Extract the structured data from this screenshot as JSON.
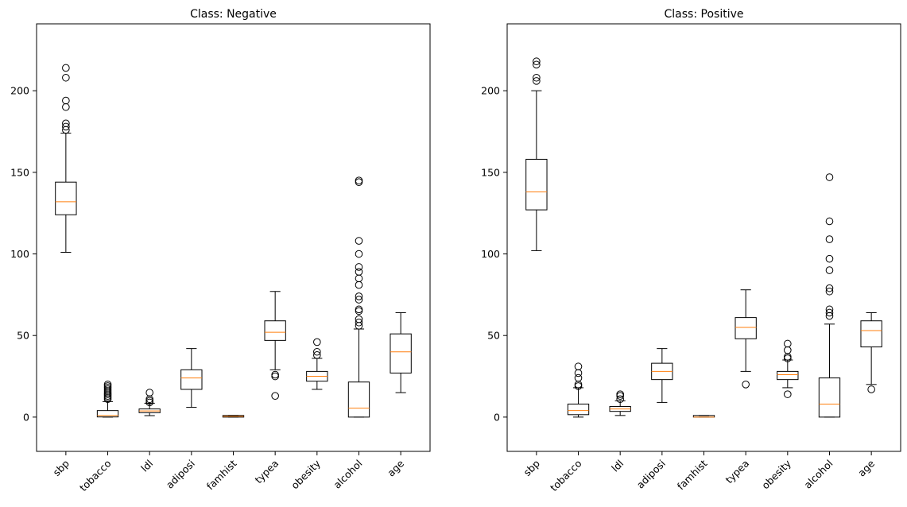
{
  "chart_data": [
    {
      "type": "boxplot",
      "title": "Class: Negative",
      "xlabel": "",
      "ylabel": "",
      "ylim": [
        -21,
        241
      ],
      "yticks": [
        0,
        50,
        100,
        150,
        200
      ],
      "grid": false,
      "categories": [
        "sbp",
        "tobacco",
        "ldl",
        "adiposi",
        "famhist",
        "typea",
        "obesity",
        "alcohol",
        "age"
      ],
      "boxes": [
        {
          "label": "sbp",
          "whislo": 101,
          "q1": 124,
          "med": 132,
          "q3": 144,
          "whishi": 174,
          "fliers": [
            176,
            178,
            180,
            190,
            194,
            208,
            214
          ]
        },
        {
          "label": "tobacco",
          "whislo": 0,
          "q1": 0.1,
          "med": 1,
          "q3": 4,
          "whishi": 9.5,
          "fliers": [
            11,
            12,
            13,
            14,
            15,
            16,
            17,
            18,
            19,
            20
          ]
        },
        {
          "label": "ldl",
          "whislo": 0.9,
          "q1": 2.7,
          "med": 3.8,
          "q3": 5,
          "whishi": 8.5,
          "fliers": [
            9,
            10,
            11,
            15
          ]
        },
        {
          "label": "adiposi",
          "whislo": 6,
          "q1": 17,
          "med": 24,
          "q3": 29,
          "whishi": 42,
          "fliers": []
        },
        {
          "label": "famhist",
          "whislo": 0,
          "q1": 0,
          "med": 0.5,
          "q3": 1,
          "whishi": 1,
          "fliers": []
        },
        {
          "label": "typea",
          "whislo": 29,
          "q1": 47,
          "med": 52,
          "q3": 59,
          "whishi": 77,
          "fliers": [
            13,
            25,
            26
          ]
        },
        {
          "label": "obesity",
          "whislo": 17,
          "q1": 22,
          "med": 25,
          "q3": 28,
          "whishi": 36,
          "fliers": [
            38,
            40,
            46
          ]
        },
        {
          "label": "alcohol",
          "whislo": 0,
          "q1": 0,
          "med": 5.5,
          "q3": 21.5,
          "whishi": 54,
          "fliers": [
            56,
            58,
            60,
            65,
            66,
            72,
            74,
            81,
            85,
            89,
            92,
            100,
            108,
            144,
            145
          ]
        },
        {
          "label": "age",
          "whislo": 15,
          "q1": 27,
          "med": 40,
          "q3": 51,
          "whishi": 64,
          "fliers": []
        }
      ]
    },
    {
      "type": "boxplot",
      "title": "Class: Positive",
      "xlabel": "",
      "ylabel": "",
      "ylim": [
        -21,
        241
      ],
      "yticks": [
        0,
        50,
        100,
        150,
        200
      ],
      "grid": false,
      "categories": [
        "sbp",
        "tobacco",
        "ldl",
        "adiposi",
        "famhist",
        "typea",
        "obesity",
        "alcohol",
        "age"
      ],
      "boxes": [
        {
          "label": "sbp",
          "whislo": 102,
          "q1": 127,
          "med": 138,
          "q3": 158,
          "whishi": 200,
          "fliers": [
            206,
            208,
            216,
            218
          ]
        },
        {
          "label": "tobacco",
          "whislo": 0,
          "q1": 1.5,
          "med": 4,
          "q3": 8,
          "whishi": 18,
          "fliers": [
            19,
            20,
            24,
            27,
            31
          ]
        },
        {
          "label": "ldl",
          "whislo": 1,
          "q1": 3.5,
          "med": 5,
          "q3": 6.5,
          "whishi": 10,
          "fliers": [
            11,
            13,
            14
          ]
        },
        {
          "label": "adiposi",
          "whislo": 9,
          "q1": 23,
          "med": 28,
          "q3": 33,
          "whishi": 42,
          "fliers": []
        },
        {
          "label": "famhist",
          "whislo": 0,
          "q1": 0,
          "med": 0,
          "q3": 1,
          "whishi": 1,
          "fliers": []
        },
        {
          "label": "typea",
          "whislo": 28,
          "q1": 48,
          "med": 55,
          "q3": 61,
          "whishi": 78,
          "fliers": [
            20
          ]
        },
        {
          "label": "obesity",
          "whislo": 18,
          "q1": 23,
          "med": 26,
          "q3": 28,
          "whishi": 35,
          "fliers": [
            14,
            36,
            37,
            41,
            45
          ]
        },
        {
          "label": "alcohol",
          "whislo": 0,
          "q1": 0,
          "med": 8,
          "q3": 24,
          "whishi": 57,
          "fliers": [
            62,
            64,
            66,
            77,
            79,
            90,
            97,
            109,
            120,
            147
          ]
        },
        {
          "label": "age",
          "whislo": 20,
          "q1": 43,
          "med": 53,
          "q3": 59,
          "whishi": 64,
          "fliers": [
            17
          ]
        }
      ]
    }
  ],
  "colors": {
    "box": "#000000",
    "median": "#ff7f0e",
    "background": "#ffffff"
  }
}
